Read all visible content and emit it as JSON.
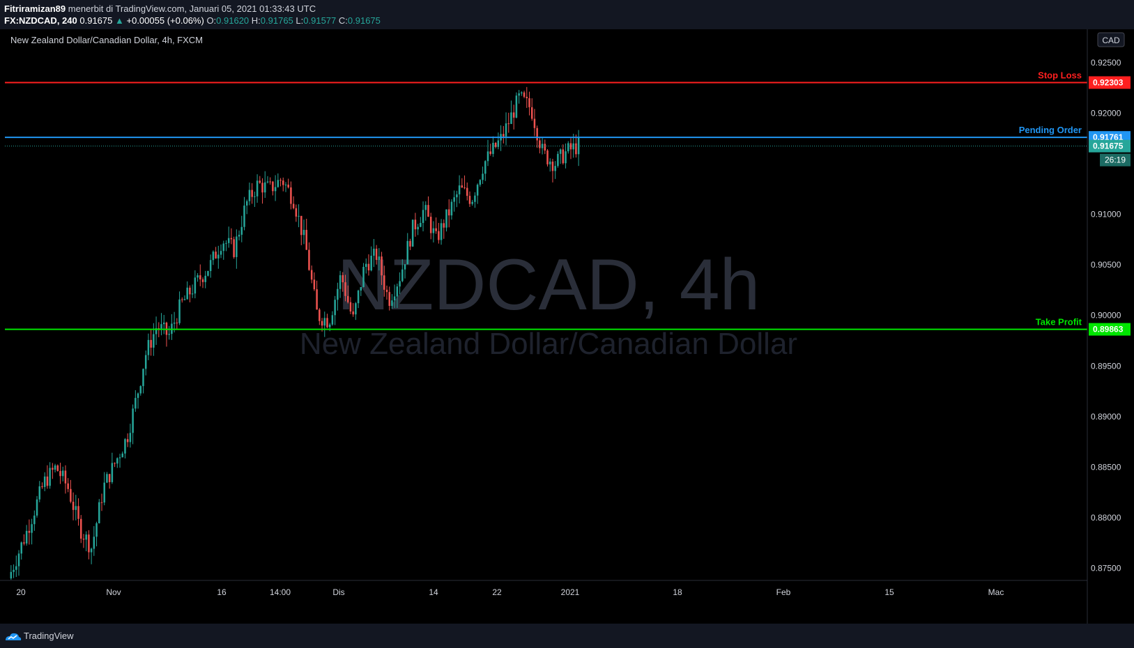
{
  "header": {
    "author": "Fitriramizan89",
    "published": "menerbit di TradingView.com, Januari 05, 2021 01:33:43 UTC",
    "symbol": "FX:NZDCAD, 240",
    "last": "0.91675",
    "change_arrow": "▲",
    "change": "+0.00055 (+0.06%)",
    "open_label": "O:",
    "open": "0.91620",
    "high_label": "H:",
    "high": "0.91765",
    "low_label": "L:",
    "low": "0.91577",
    "close_label": "C:",
    "close": "0.91675"
  },
  "legend_title": "New Zealand Dollar/Canadian Dollar, 4h, FXCM",
  "watermark": {
    "line1": "NZDCAD, 4h",
    "line2": "New Zealand Dollar/Canadian Dollar"
  },
  "currency_badge": "CAD",
  "countdown": "26:19",
  "footer": {
    "brand": "TradingView"
  },
  "colors": {
    "up": "#26a69a",
    "down": "#ef5350",
    "stop": "#ff1f1f",
    "pending": "#2196f3",
    "take": "#00e600",
    "bg": "#000000"
  },
  "chart_data": {
    "type": "candlestick",
    "y_ticks": [
      "0.92500",
      "0.92000",
      "0.91000",
      "0.90500",
      "0.90000",
      "0.89500",
      "0.89000",
      "0.88500",
      "0.88000",
      "0.87500"
    ],
    "ylim": [
      0.8738,
      0.9283
    ],
    "x_ticks": [
      "20",
      "Nov",
      "16",
      "14:00",
      "Dis",
      "14",
      "22",
      "2021",
      "18",
      "Feb",
      "15",
      "Mac"
    ],
    "levels": [
      {
        "label": "Stop Loss",
        "value": "0.92303",
        "color": "#ff1f1f"
      },
      {
        "label": "Pending Order",
        "value": "0.91761",
        "color": "#2196f3"
      },
      {
        "label": "Take Profit",
        "value": "0.89863",
        "color": "#00e600"
      }
    ],
    "current_price": "0.91675",
    "price_path": [
      [
        0,
        0.874
      ],
      [
        0.03,
        0.8785
      ],
      [
        0.06,
        0.8835
      ],
      [
        0.08,
        0.885
      ],
      [
        0.1,
        0.883
      ],
      [
        0.12,
        0.879
      ],
      [
        0.14,
        0.877
      ],
      [
        0.16,
        0.883
      ],
      [
        0.18,
        0.8855
      ],
      [
        0.2,
        0.888
      ],
      [
        0.22,
        0.893
      ],
      [
        0.23,
        0.896
      ],
      [
        0.25,
        0.899
      ],
      [
        0.27,
        0.898
      ],
      [
        0.29,
        0.901
      ],
      [
        0.32,
        0.9035
      ],
      [
        0.34,
        0.905
      ],
      [
        0.36,
        0.9075
      ],
      [
        0.38,
        0.9065
      ],
      [
        0.4,
        0.911
      ],
      [
        0.42,
        0.913
      ],
      [
        0.44,
        0.9125
      ],
      [
        0.46,
        0.9135
      ],
      [
        0.48,
        0.9115
      ],
      [
        0.5,
        0.907
      ],
      [
        0.52,
        0.9
      ],
      [
        0.54,
        0.8995
      ],
      [
        0.56,
        0.904
      ],
      [
        0.58,
        0.8995
      ],
      [
        0.6,
        0.905
      ],
      [
        0.62,
        0.906
      ],
      [
        0.64,
        0.9015
      ],
      [
        0.66,
        0.904
      ],
      [
        0.68,
        0.9085
      ],
      [
        0.7,
        0.9105
      ],
      [
        0.72,
        0.9075
      ],
      [
        0.74,
        0.91
      ],
      [
        0.76,
        0.9125
      ],
      [
        0.78,
        0.9115
      ],
      [
        0.8,
        0.915
      ],
      [
        0.83,
        0.9175
      ],
      [
        0.86,
        0.9215
      ],
      [
        0.88,
        0.9205
      ],
      [
        0.9,
        0.916
      ],
      [
        0.92,
        0.915
      ],
      [
        0.94,
        0.9162
      ],
      [
        0.96,
        0.9168
      ]
    ]
  }
}
